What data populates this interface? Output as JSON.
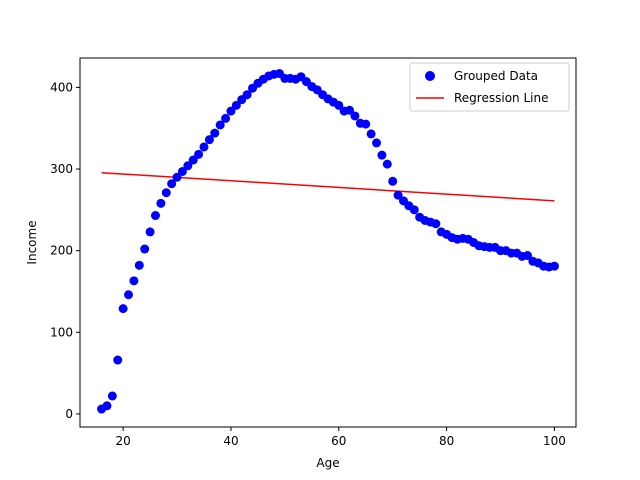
{
  "chart_data": {
    "type": "scatter",
    "title": "",
    "xlabel": "Age",
    "ylabel": "Income",
    "xlim": [
      12,
      104
    ],
    "ylim": [
      -16,
      436
    ],
    "xticks": [
      20,
      40,
      60,
      80,
      100
    ],
    "yticks": [
      0,
      100,
      200,
      300,
      400
    ],
    "grid": false,
    "legend_position": "top-right",
    "series": [
      {
        "name": "Grouped Data",
        "kind": "scatter",
        "color": "#0000ff",
        "x": [
          16,
          17,
          18,
          19,
          20,
          21,
          22,
          23,
          24,
          25,
          26,
          27,
          28,
          29,
          30,
          31,
          32,
          33,
          34,
          35,
          36,
          37,
          38,
          39,
          40,
          41,
          42,
          43,
          44,
          45,
          46,
          47,
          48,
          49,
          50,
          51,
          52,
          53,
          54,
          55,
          56,
          57,
          58,
          59,
          60,
          61,
          62,
          63,
          64,
          65,
          66,
          67,
          68,
          69,
          70,
          71,
          72,
          73,
          74,
          75,
          76,
          77,
          78,
          79,
          80,
          81,
          82,
          83,
          84,
          85,
          86,
          87,
          88,
          89,
          90,
          91,
          92,
          93,
          94,
          95,
          96,
          97,
          98,
          99,
          100
        ],
        "y": [
          6,
          10,
          22,
          66,
          129,
          146,
          163,
          182,
          202,
          223,
          243,
          258,
          271,
          282,
          290,
          297,
          304,
          311,
          318,
          327,
          336,
          344,
          354,
          362,
          371,
          378,
          385,
          391,
          399,
          405,
          410,
          414,
          416,
          417,
          411,
          411,
          410,
          413,
          407,
          401,
          397,
          391,
          386,
          382,
          378,
          371,
          372,
          365,
          356,
          355,
          343,
          332,
          317,
          306,
          285,
          268,
          261,
          255,
          250,
          241,
          237,
          235,
          233,
          223,
          220,
          216,
          214,
          215,
          214,
          210,
          206,
          205,
          204,
          204,
          200,
          200,
          197,
          197,
          193,
          194,
          187,
          185,
          181,
          180,
          181
        ]
      },
      {
        "name": "Regression Line",
        "kind": "line",
        "color": "#ff0000",
        "x": [
          16,
          100
        ],
        "y": [
          295.5,
          261.0
        ]
      }
    ]
  }
}
